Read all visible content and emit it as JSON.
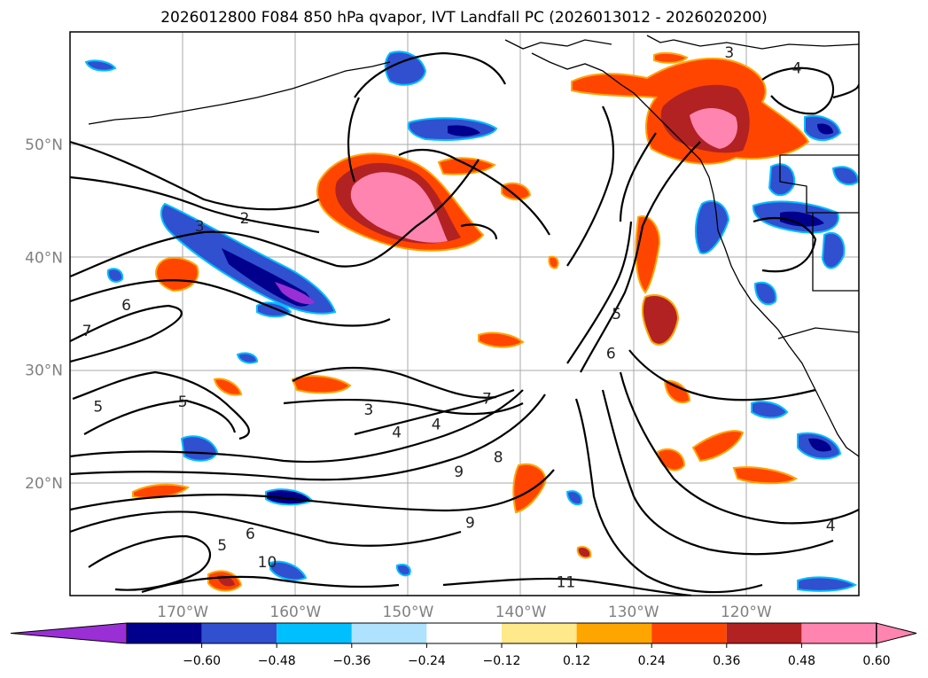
{
  "title": "2026012800 F084 850 hPa qvapor, IVT Landfall PC (2026013012 - 2026020200)",
  "map": {
    "lat_labels": [
      "50°N",
      "40°N",
      "30°N",
      "20°N"
    ],
    "lat_values": [
      50,
      40,
      30,
      20
    ],
    "lon_labels": [
      "170°W",
      "160°W",
      "150°W",
      "140°W",
      "130°W",
      "120°W"
    ],
    "lon_values": [
      -170,
      -160,
      -150,
      -140,
      -130,
      -120
    ],
    "extent": {
      "lon_min": -180,
      "lon_max": -110,
      "lat_min": 10,
      "lat_max": 60
    },
    "contour_labels": [
      {
        "text": "2",
        "lon": -164.5,
        "lat": 43.5
      },
      {
        "text": "3",
        "lon": -168.5,
        "lat": 42.8
      },
      {
        "text": "6",
        "lon": -175.0,
        "lat": 35.8
      },
      {
        "text": "7",
        "lon": -178.5,
        "lat": 33.5
      },
      {
        "text": "5",
        "lon": -177.5,
        "lat": 26.8
      },
      {
        "text": "5",
        "lon": -170.0,
        "lat": 27.2
      },
      {
        "text": "3",
        "lon": -153.5,
        "lat": 26.5
      },
      {
        "text": "4",
        "lon": -151.0,
        "lat": 24.5
      },
      {
        "text": "4",
        "lon": -147.5,
        "lat": 25.2
      },
      {
        "text": "9",
        "lon": -145.5,
        "lat": 21.0
      },
      {
        "text": "8",
        "lon": -142.0,
        "lat": 22.3
      },
      {
        "text": "7",
        "lon": -143.0,
        "lat": 27.5
      },
      {
        "text": "9",
        "lon": -144.5,
        "lat": 16.5
      },
      {
        "text": "11",
        "lon": -136.0,
        "lat": 11.2
      },
      {
        "text": "10",
        "lon": -162.5,
        "lat": 13.0
      },
      {
        "text": "5",
        "lon": -166.5,
        "lat": 14.5
      },
      {
        "text": "6",
        "lon": -164.0,
        "lat": 15.5
      },
      {
        "text": "5",
        "lon": -131.5,
        "lat": 35.0
      },
      {
        "text": "6",
        "lon": -132.0,
        "lat": 31.5
      },
      {
        "text": "3",
        "lon": -121.5,
        "lat": 58.2
      },
      {
        "text": "4",
        "lon": -115.5,
        "lat": 56.8
      },
      {
        "text": "4",
        "lon": -112.5,
        "lat": 16.2
      }
    ]
  },
  "colorbar": {
    "ticks": [
      "−0.60",
      "−0.48",
      "−0.36",
      "−0.24",
      "−0.12",
      "0.12",
      "0.24",
      "0.36",
      "0.48",
      "0.60"
    ],
    "colors": [
      "#9a2fd6",
      "#00008c",
      "#3050d0",
      "#00bfff",
      "#aee2ff",
      "#ffffff",
      "#ffe98a",
      "#ffa500",
      "#ff4500",
      "#b22222",
      "#ff85b0",
      "#ff85b0"
    ]
  }
}
